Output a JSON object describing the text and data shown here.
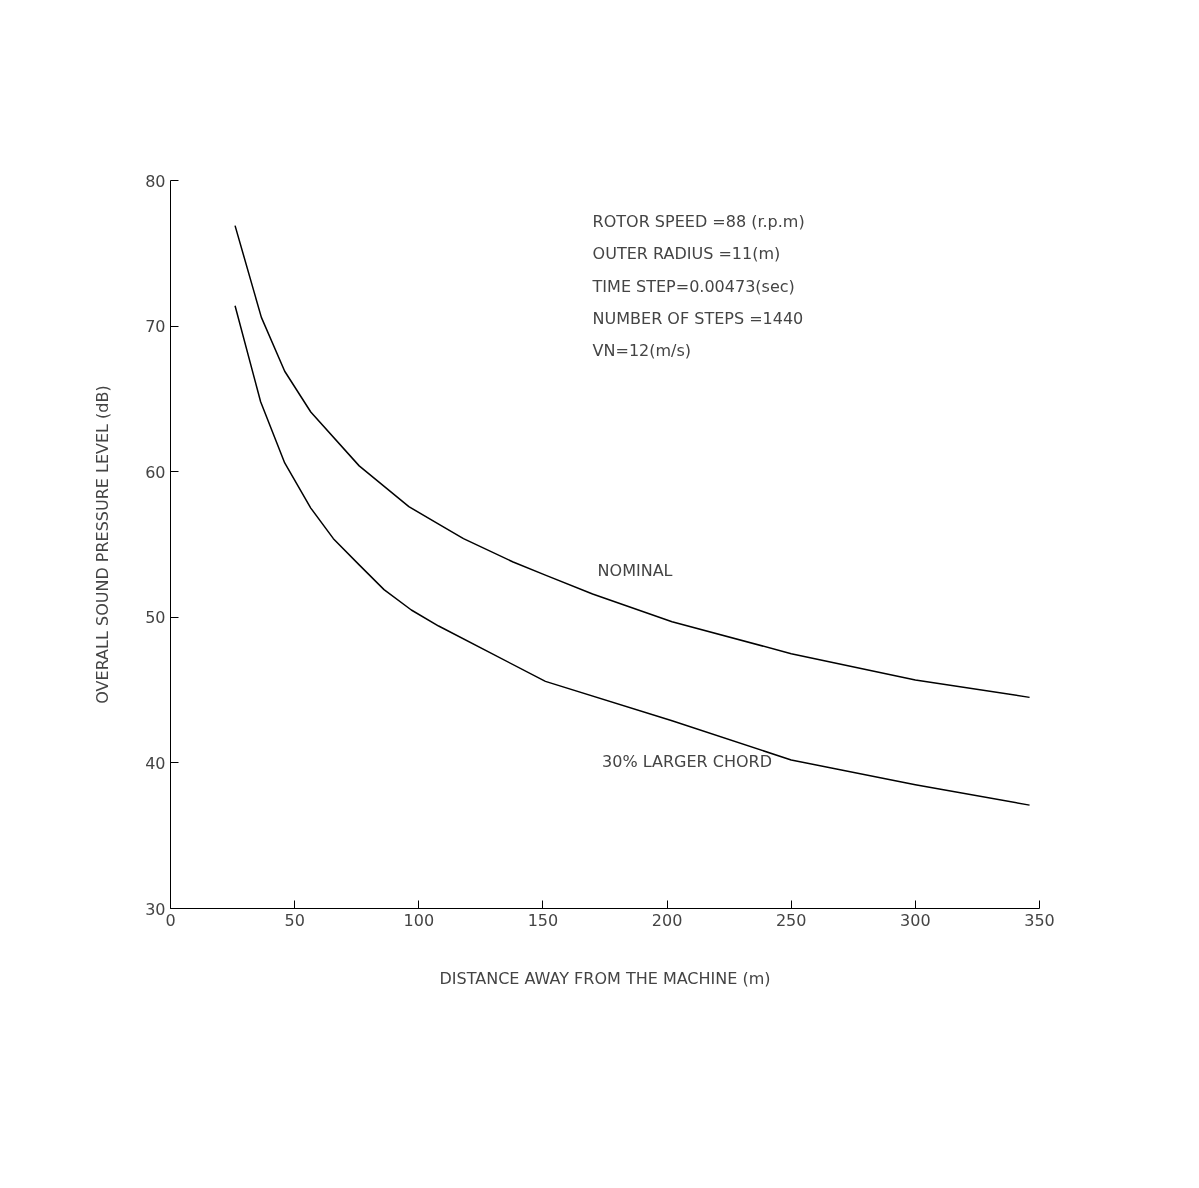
{
  "chart_data": {
    "type": "line",
    "xlabel": "DISTANCE AWAY FROM THE MACHINE (m)",
    "ylabel": "OVERALL SOUND PRESSURE LEVEL (dB)",
    "xlim": [
      0,
      350
    ],
    "ylim": [
      30,
      80
    ],
    "xticks": [
      0,
      50,
      100,
      150,
      200,
      250,
      300,
      350
    ],
    "yticks": [
      30,
      40,
      50,
      60,
      70,
      80
    ],
    "grid": false,
    "marker": "none",
    "line_style": "solid",
    "series": [
      {
        "name": "NOMINAL",
        "color": "#000000",
        "x": [
          26,
          36.6,
          46,
          56.5,
          76,
          96,
          108,
          118,
          138,
          151,
          170,
          202,
          250,
          300,
          346
        ],
        "values": [
          76.9,
          70.6,
          66.9,
          64.1,
          60.4,
          57.6,
          56.4,
          55.4,
          53.8,
          52.9,
          51.6,
          49.7,
          47.5,
          45.7,
          44.5
        ]
      },
      {
        "name": "30% LARGER CHORD",
        "color": "#000000",
        "x": [
          26,
          36.3,
          46,
          56.5,
          65.6,
          76,
          86,
          97,
          108,
          151,
          202,
          250,
          300,
          346
        ],
        "values": [
          71.4,
          64.8,
          60.6,
          57.5,
          55.4,
          53.6,
          51.9,
          50.5,
          49.4,
          45.6,
          42.9,
          40.2,
          38.5,
          37.1
        ]
      }
    ],
    "annotations": [
      "ROTOR SPEED =88 (r.p.m)",
      "OUTER RADIUS =11(m)",
      "TIME STEP=0.00473(sec)",
      "NUMBER OF STEPS =1440",
      "VN=12(m/s)"
    ]
  }
}
